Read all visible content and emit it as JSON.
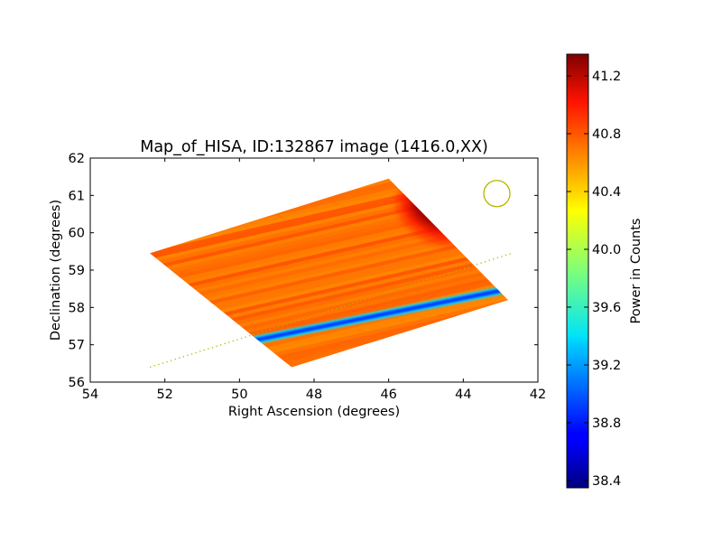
{
  "chart_data": {
    "type": "heatmap",
    "title": "Map_of_HISA, ID:132867 image (1416.0,XX)",
    "xlabel": "Right Ascension (degrees)",
    "ylabel": "Declination (degrees)",
    "xlim": [
      54,
      42
    ],
    "ylim": [
      56,
      62
    ],
    "x_inverted": true,
    "x_ticks": [
      "54",
      "52",
      "50",
      "48",
      "46",
      "44",
      "42"
    ],
    "y_ticks": [
      "56",
      "57",
      "58",
      "59",
      "60",
      "61",
      "62"
    ],
    "map_footprint_corners": [
      {
        "ra": 52.4,
        "dec": 59.45
      },
      {
        "ra": 46.0,
        "dec": 61.45
      },
      {
        "ra": 42.8,
        "dec": 58.2
      },
      {
        "ra": 48.6,
        "dec": 56.4
      }
    ],
    "background_level": 40.65,
    "hotspot": {
      "ra": 45.2,
      "dec": 60.4,
      "value": 41.3
    },
    "absorption_lane": {
      "start": {
        "ra": 49.6,
        "dec": 57.12
      },
      "end": {
        "ra": 43.0,
        "dec": 58.45
      },
      "value": 38.9
    },
    "dotted_line": {
      "start": {
        "ra": 52.4,
        "dec": 56.4
      },
      "end": {
        "ra": 42.7,
        "dec": 59.45
      },
      "color": "#b5b500"
    },
    "beam_circle": {
      "ra": 43.1,
      "dec": 61.05,
      "color": "#b5b500"
    },
    "colorbar": {
      "label": "Power in Counts",
      "min": 38.35,
      "max": 41.35,
      "ticks": [
        "38.4",
        "38.8",
        "39.2",
        "39.6",
        "40.0",
        "40.4",
        "40.8",
        "41.2"
      ],
      "tick_values": [
        38.4,
        38.8,
        39.2,
        39.6,
        40.0,
        40.4,
        40.8,
        41.2
      ],
      "colormap": "jet"
    },
    "grid": false
  }
}
